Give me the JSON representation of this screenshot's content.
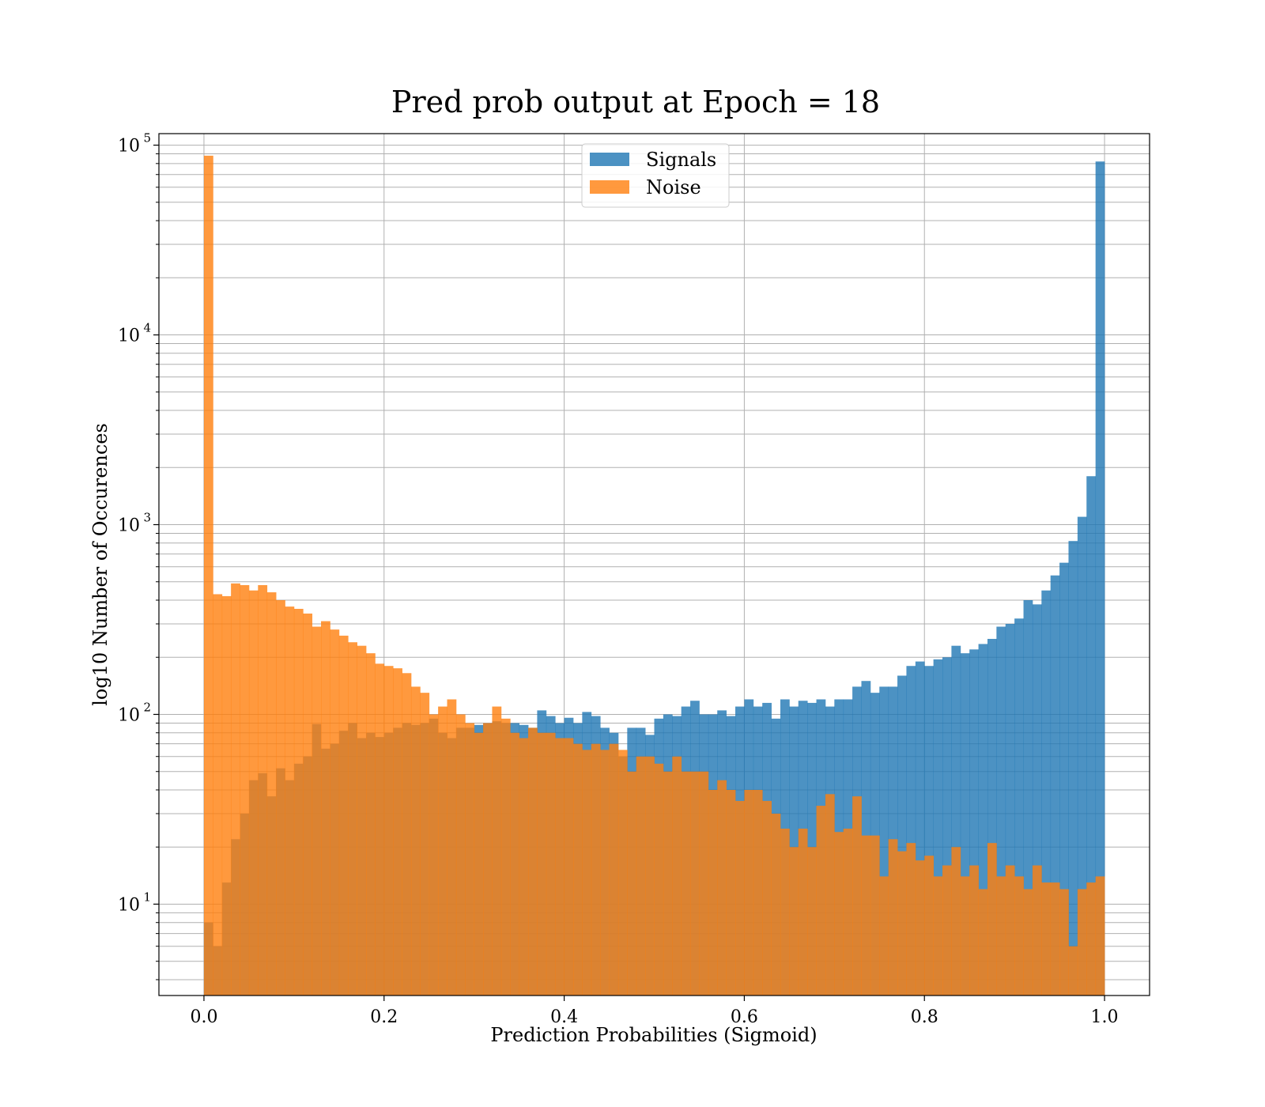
{
  "chart_data": {
    "type": "bar",
    "title": "Pred prob output at Epoch = 18",
    "xlabel": "Prediction Probabilities (Sigmoid)",
    "ylabel": "log10 Number of Occurences",
    "xlim": [
      -0.05,
      1.05
    ],
    "ylim": [
      3.3,
      115000
    ],
    "yscale": "log",
    "grid": true,
    "legend_position": "top-center",
    "bin_start": 0.0,
    "bin_width": 0.01,
    "x_ticks": [
      "0.0",
      "0.2",
      "0.4",
      "0.6",
      "0.8",
      "1.0"
    ],
    "y_ticks": [
      {
        "base": "10",
        "exp": "1"
      },
      {
        "base": "10",
        "exp": "2"
      },
      {
        "base": "10",
        "exp": "3"
      },
      {
        "base": "10",
        "exp": "4"
      },
      {
        "base": "10",
        "exp": "5"
      }
    ],
    "series": [
      {
        "name": "Signals",
        "color": "#1f77b4",
        "alpha": 0.8,
        "values": [
          8,
          6,
          13,
          22,
          30,
          45,
          49,
          37,
          52,
          45,
          55,
          60,
          89,
          66,
          70,
          82,
          90,
          75,
          80,
          76,
          80,
          85,
          90,
          88,
          90,
          95,
          80,
          75,
          85,
          85,
          88,
          90,
          92,
          90,
          90,
          88,
          85,
          105,
          98,
          90,
          96,
          90,
          103,
          98,
          85,
          80,
          60,
          85,
          85,
          78,
          95,
          100,
          98,
          110,
          118,
          100,
          100,
          105,
          98,
          110,
          120,
          110,
          115,
          95,
          120,
          110,
          118,
          115,
          120,
          110,
          120,
          120,
          140,
          150,
          130,
          140,
          140,
          160,
          180,
          190,
          180,
          195,
          200,
          230,
          210,
          220,
          235,
          250,
          290,
          300,
          320,
          400,
          380,
          450,
          540,
          630,
          820,
          1100,
          1800,
          82000
        ]
      },
      {
        "name": "Noise",
        "color": "#ff7f0e",
        "alpha": 0.8,
        "values": [
          88000,
          430,
          420,
          490,
          480,
          450,
          480,
          440,
          400,
          370,
          360,
          340,
          290,
          310,
          280,
          260,
          240,
          230,
          210,
          185,
          180,
          175,
          165,
          140,
          130,
          100,
          110,
          120,
          100,
          90,
          80,
          90,
          110,
          95,
          80,
          75,
          85,
          80,
          80,
          75,
          75,
          70,
          65,
          70,
          65,
          70,
          65,
          50,
          60,
          60,
          55,
          50,
          60,
          50,
          50,
          50,
          40,
          45,
          40,
          35,
          40,
          40,
          35,
          30,
          25,
          20,
          25,
          20,
          33,
          38,
          24,
          25,
          37,
          23,
          23,
          14,
          22,
          19,
          21,
          17,
          18,
          14,
          16,
          20,
          14,
          16,
          12,
          21,
          14,
          16,
          14,
          12,
          16,
          13,
          13,
          12,
          6,
          12,
          13,
          14
        ]
      }
    ]
  }
}
